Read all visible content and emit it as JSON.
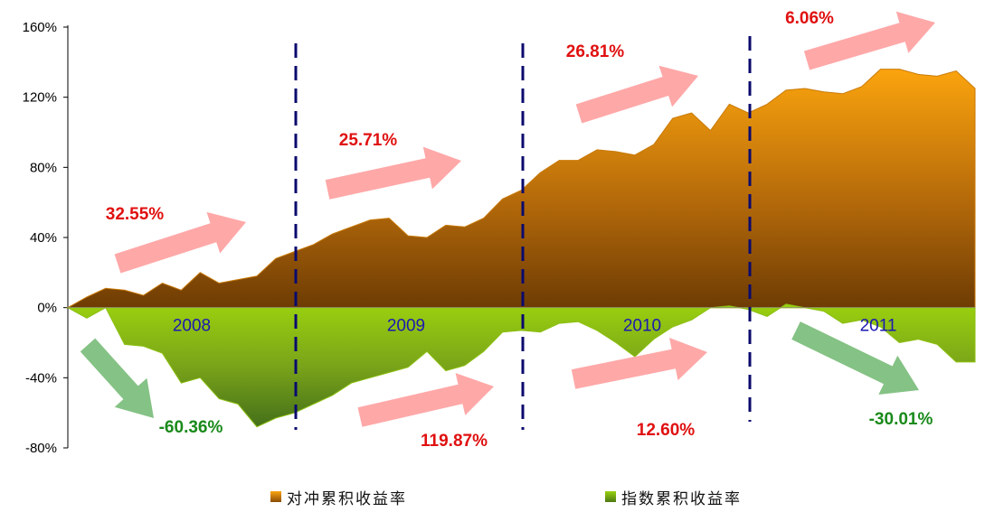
{
  "chart_data": {
    "type": "area",
    "ylim": [
      -80,
      160
    ],
    "yticks": [
      "160%",
      "120%",
      "80%",
      "40%",
      "0%",
      "-40%",
      "-80%"
    ],
    "ytick_values": [
      160,
      120,
      80,
      40,
      0,
      -40,
      -80
    ],
    "years": [
      "2008",
      "2009",
      "2010",
      "2011"
    ],
    "year_boundaries": [
      12.5,
      24.5,
      36.5
    ],
    "n_points": 49,
    "series": [
      {
        "name": "对冲累积收益率",
        "color": "#f5a00e",
        "values": [
          0,
          6,
          11,
          10,
          7,
          14,
          10,
          20,
          14,
          16,
          18,
          28,
          32,
          36,
          42,
          46,
          50,
          51,
          41,
          40,
          47,
          46,
          51,
          62,
          67,
          77,
          84,
          84,
          90,
          89,
          87,
          93,
          108,
          111,
          101,
          116,
          111,
          116,
          124,
          125,
          123,
          122,
          126,
          136,
          136,
          133,
          132,
          135,
          125
        ]
      },
      {
        "name": "指数累积收益率",
        "color": "#8cc814",
        "values": [
          0,
          -6,
          0,
          -21,
          -22,
          -26,
          -43,
          -40,
          -52,
          -55,
          -68,
          -63,
          -60,
          -55,
          -50,
          -43,
          -40,
          -37,
          -34,
          -25,
          -36,
          -33,
          -25,
          -14,
          -13,
          -14,
          -9,
          -8,
          -13,
          -20,
          -28,
          -18,
          -11,
          -7,
          0,
          1,
          -1,
          -5,
          2,
          0,
          -2,
          -9,
          -7,
          -11,
          -20,
          -18,
          -21,
          -31,
          -31
        ]
      }
    ],
    "annotations": {
      "hedge": [
        "32.55%",
        "25.71%",
        "26.81%",
        "6.06%"
      ],
      "index": [
        "-60.36%",
        "119.87%",
        "12.60%",
        "-30.01%"
      ]
    },
    "legend": [
      "对冲累积收益率",
      "指数累积收益率"
    ]
  }
}
